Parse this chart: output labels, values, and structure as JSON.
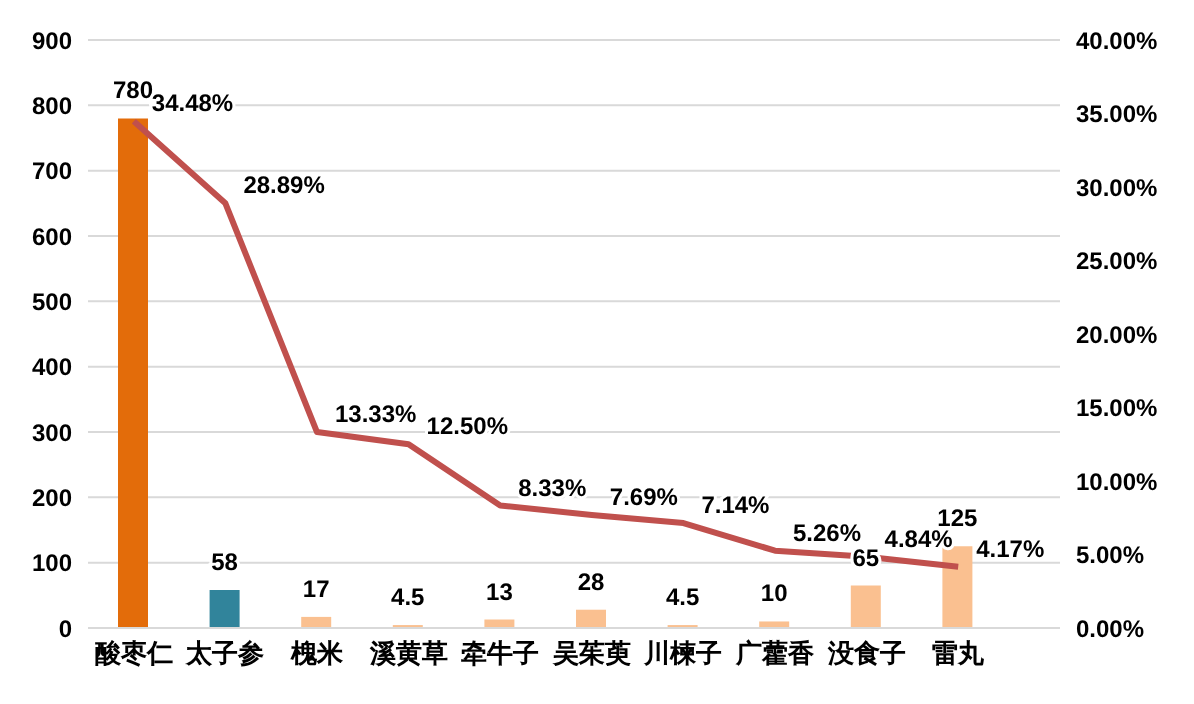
{
  "chart_data": {
    "type": "bar",
    "categories": [
      "酸枣仁",
      "太子参",
      "槐米",
      "溪黄草",
      "牵牛子",
      "吴茱萸",
      "川楝子",
      "广藿香",
      "没食子",
      "雷丸"
    ],
    "series": [
      {
        "colors": [
          "#e36c0a",
          "#31849b",
          "#fac090",
          "#fac090",
          "#fac090",
          "#fac090",
          "#fac090",
          "#fac090",
          "#fac090",
          "#fac090"
        ],
        "values": [
          780,
          58,
          17,
          4.5,
          13,
          28,
          4.5,
          10,
          65,
          125
        ],
        "value_labels": [
          "780",
          "58",
          "17",
          "4.5",
          "13",
          "28",
          "4.5",
          "10",
          "65",
          "125"
        ]
      },
      {
        "type": "line",
        "axis": "y2",
        "color": "#c0504d",
        "values": [
          34.48,
          28.89,
          13.33,
          12.5,
          8.33,
          7.69,
          7.14,
          5.26,
          4.84,
          4.17
        ],
        "value_labels": [
          "34.48%",
          "28.89%",
          "13.33%",
          "12.50%",
          "8.33%",
          "7.69%",
          "7.14%",
          "5.26%",
          "4.84%",
          "4.17%"
        ]
      }
    ],
    "ylim": [
      0,
      900
    ],
    "yticks": [
      0,
      100,
      200,
      300,
      400,
      500,
      600,
      700,
      800,
      900
    ],
    "y2lim": [
      0,
      40
    ],
    "y2ticks": [
      {
        "value": 0,
        "label": "0.00%"
      },
      {
        "value": 5,
        "label": "5.00%"
      },
      {
        "value": 10,
        "label": "10.00%"
      },
      {
        "value": 15,
        "label": "15.00%"
      },
      {
        "value": 20,
        "label": "20.00%"
      },
      {
        "value": 25,
        "label": "25.00%"
      },
      {
        "value": 30,
        "label": "30.00%"
      },
      {
        "value": 35,
        "label": "35.00%"
      },
      {
        "value": 40,
        "label": "40.00%"
      }
    ],
    "grid": "y",
    "legend": false,
    "marker": "none",
    "line_style": "solid"
  }
}
